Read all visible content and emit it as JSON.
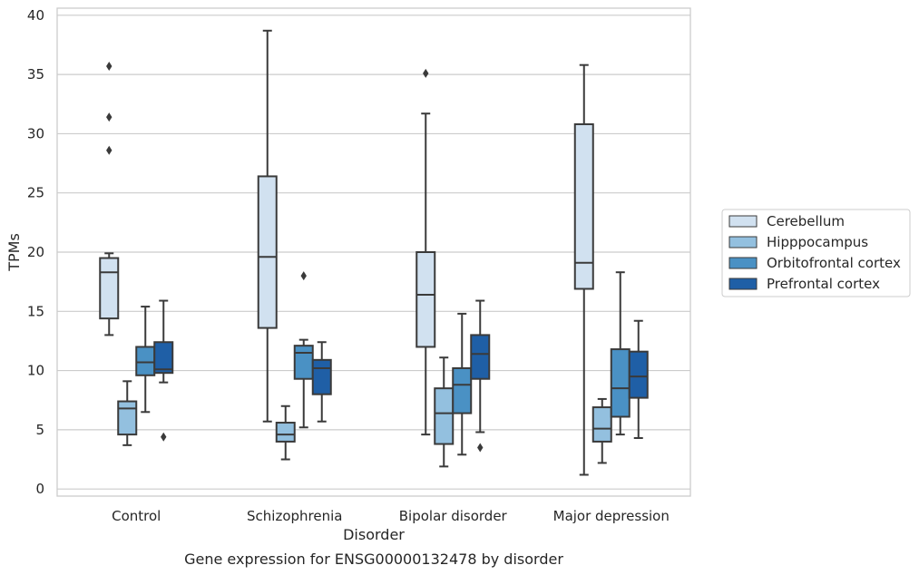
{
  "chart_data": {
    "type": "box",
    "xlabel": "Disorder",
    "ylabel": "TPMs",
    "caption": "Gene expression for ENSG00000132478 by disorder",
    "ylim": [
      -0.6,
      40.6
    ],
    "yticks": [
      0,
      5,
      10,
      15,
      20,
      25,
      30,
      35,
      40
    ],
    "grid": true,
    "legend_position": "right",
    "categories": [
      "Control",
      "Schizophrenia",
      "Bipolar disorder",
      "Major depression"
    ],
    "series": [
      {
        "name": "Cerebellum",
        "color": "#d1e1f0",
        "boxes": [
          {
            "whisker_low": 13.0,
            "q1": 14.4,
            "median": 18.3,
            "q3": 19.5,
            "whisker_high": 19.9,
            "outliers": [
              28.6,
              31.4,
              35.7
            ]
          },
          {
            "whisker_low": 5.7,
            "q1": 13.6,
            "median": 19.6,
            "q3": 26.4,
            "whisker_high": 38.7,
            "outliers": []
          },
          {
            "whisker_low": 4.6,
            "q1": 12.0,
            "median": 16.4,
            "q3": 20.0,
            "whisker_high": 31.7,
            "outliers": [
              35.1
            ]
          },
          {
            "whisker_low": 1.2,
            "q1": 16.9,
            "median": 19.1,
            "q3": 30.8,
            "whisker_high": 35.8,
            "outliers": []
          }
        ]
      },
      {
        "name": "Hipppocampus",
        "color": "#93c0df",
        "boxes": [
          {
            "whisker_low": 3.7,
            "q1": 4.6,
            "median": 6.8,
            "q3": 7.4,
            "whisker_high": 9.1,
            "outliers": []
          },
          {
            "whisker_low": 2.5,
            "q1": 4.0,
            "median": 4.6,
            "q3": 5.6,
            "whisker_high": 7.0,
            "outliers": []
          },
          {
            "whisker_low": 1.9,
            "q1": 3.8,
            "median": 6.4,
            "q3": 8.5,
            "whisker_high": 11.1,
            "outliers": []
          },
          {
            "whisker_low": 2.2,
            "q1": 4.0,
            "median": 5.1,
            "q3": 6.9,
            "whisker_high": 7.6,
            "outliers": []
          }
        ]
      },
      {
        "name": "Orbitofrontal cortex",
        "color": "#4a91c4",
        "boxes": [
          {
            "whisker_low": 6.5,
            "q1": 9.6,
            "median": 10.7,
            "q3": 12.0,
            "whisker_high": 15.4,
            "outliers": []
          },
          {
            "whisker_low": 5.2,
            "q1": 9.3,
            "median": 11.5,
            "q3": 12.1,
            "whisker_high": 12.6,
            "outliers": [
              18.0
            ]
          },
          {
            "whisker_low": 2.9,
            "q1": 6.4,
            "median": 8.8,
            "q3": 10.2,
            "whisker_high": 14.8,
            "outliers": []
          },
          {
            "whisker_low": 4.6,
            "q1": 6.1,
            "median": 8.5,
            "q3": 11.8,
            "whisker_high": 18.3,
            "outliers": []
          }
        ]
      },
      {
        "name": "Prefrontal cortex",
        "color": "#1f5fa6",
        "boxes": [
          {
            "whisker_low": 9.0,
            "q1": 9.8,
            "median": 10.1,
            "q3": 12.4,
            "whisker_high": 15.9,
            "outliers": [
              4.4
            ]
          },
          {
            "whisker_low": 5.7,
            "q1": 8.0,
            "median": 10.2,
            "q3": 10.9,
            "whisker_high": 12.4,
            "outliers": []
          },
          {
            "whisker_low": 4.8,
            "q1": 9.3,
            "median": 11.4,
            "q3": 13.0,
            "whisker_high": 15.9,
            "outliers": [
              3.5
            ]
          },
          {
            "whisker_low": 4.3,
            "q1": 7.7,
            "median": 9.5,
            "q3": 11.6,
            "whisker_high": 14.2,
            "outliers": []
          }
        ]
      }
    ]
  }
}
